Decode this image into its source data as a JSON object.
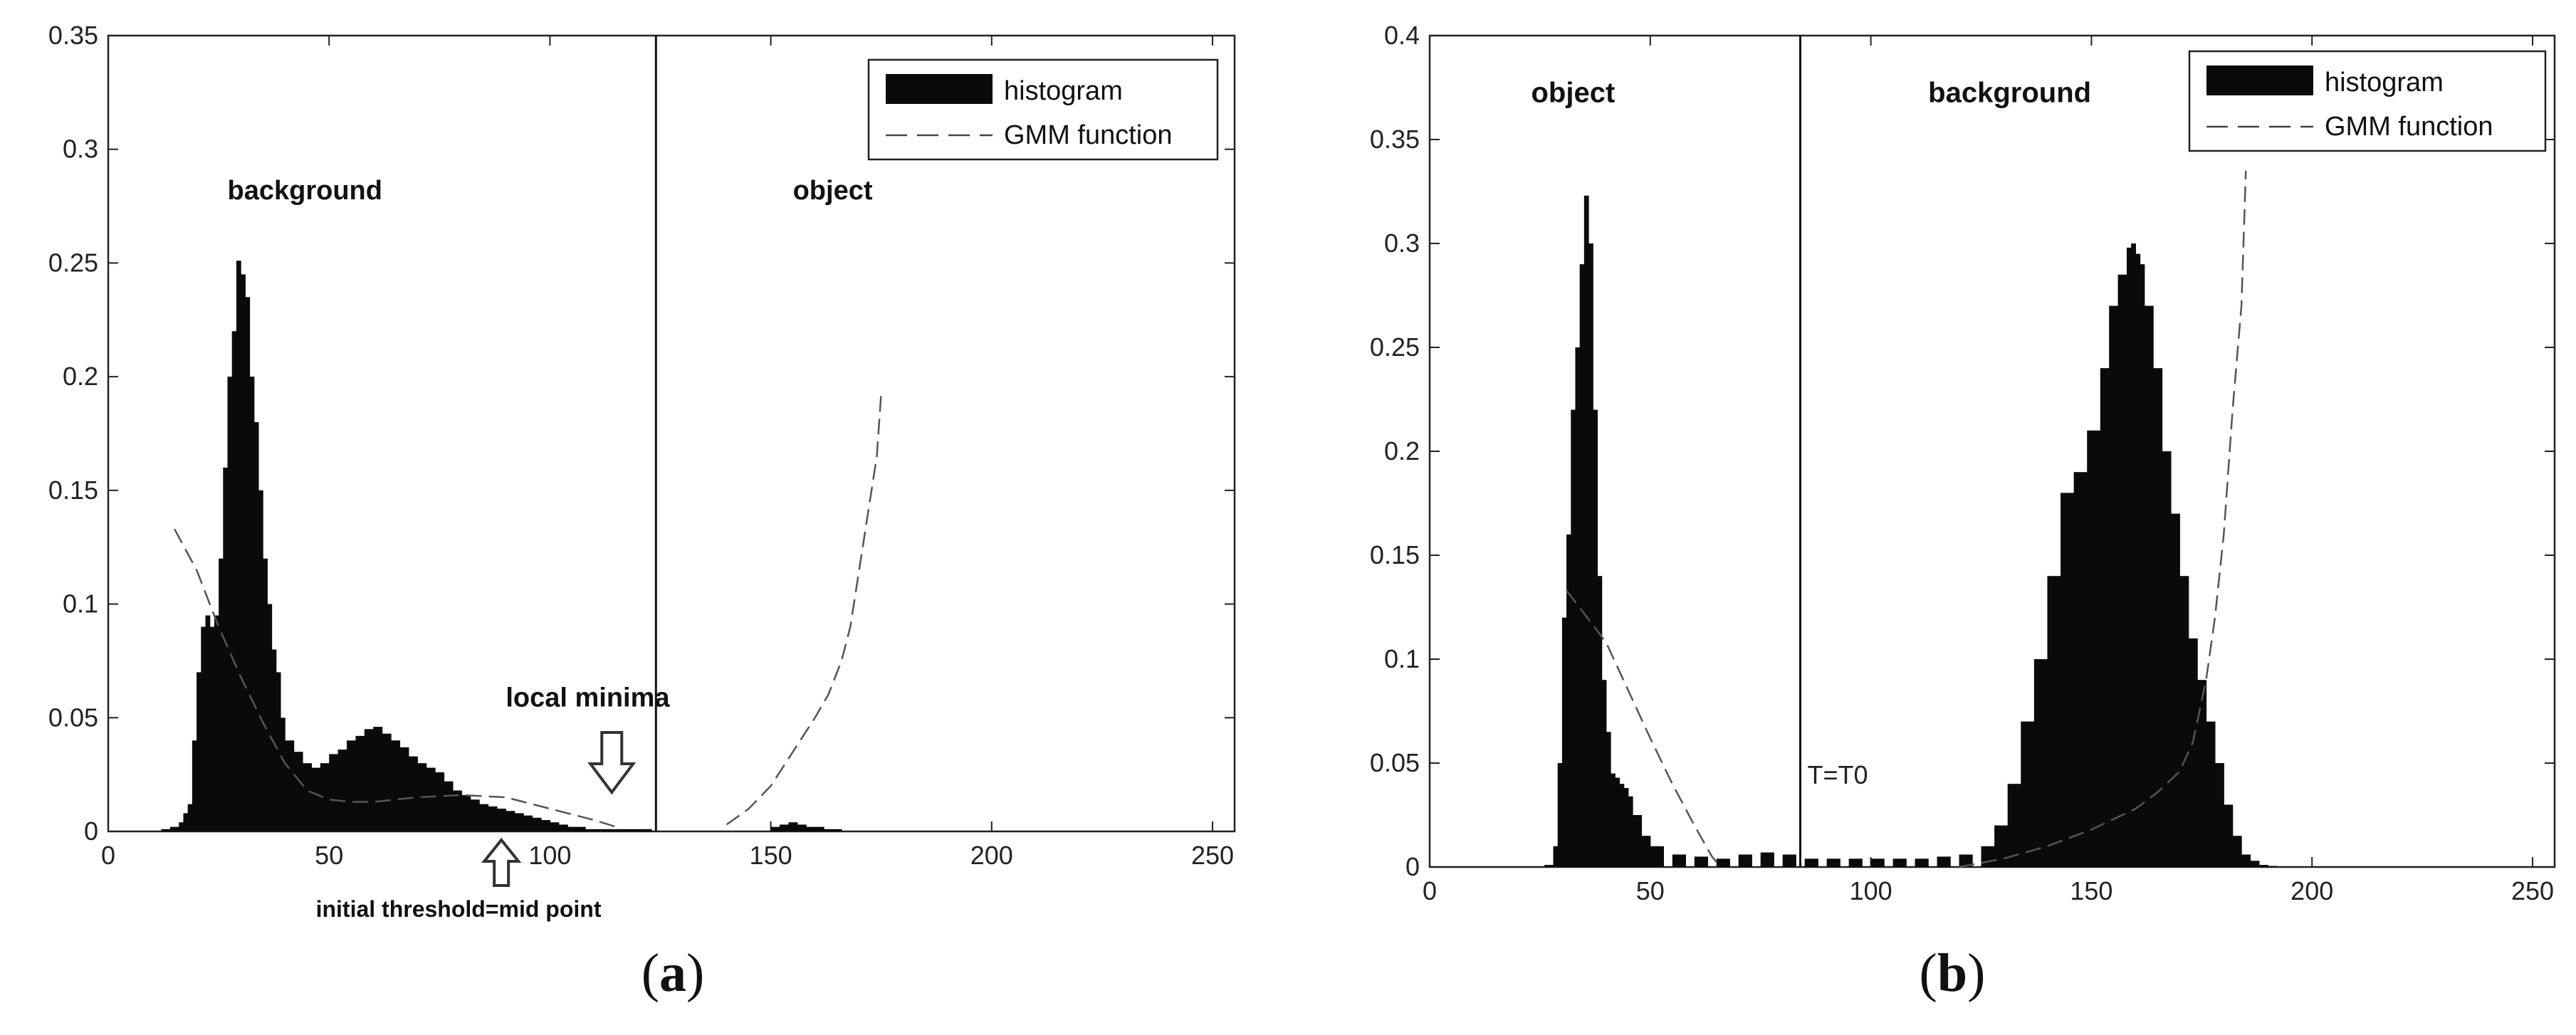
{
  "chart_data": [
    {
      "type": "bar",
      "panel_label": "(a)",
      "panel_letter": "a",
      "xlim": [
        0,
        255
      ],
      "ylim": [
        0,
        0.35
      ],
      "xticks": [
        0,
        50,
        100,
        150,
        200,
        250
      ],
      "yticks": [
        "0",
        "0.05",
        "0.1",
        "0.15",
        "0.2",
        "0.25",
        "0.3",
        "0.35"
      ],
      "legend": {
        "location": "top-right",
        "entries": [
          "histogram",
          "GMM function"
        ]
      },
      "threshold_x": 124,
      "annotations": {
        "background": "background",
        "object": "object",
        "local_minima": "local minima",
        "initial_threshold": "initial threshold=mid point"
      },
      "arrows": {
        "local_minima_x": 114,
        "initial_threshold_x": 89
      },
      "histogram": {
        "x": [
          12,
          14,
          16,
          17,
          18,
          19,
          20,
          21,
          22,
          23,
          24,
          25,
          26,
          27,
          28,
          29,
          30,
          31,
          32,
          33,
          34,
          35,
          36,
          37,
          38,
          39,
          40,
          42,
          44,
          46,
          48,
          50,
          52,
          54,
          56,
          58,
          60,
          62,
          64,
          66,
          68,
          70,
          72,
          74,
          76,
          78,
          80,
          82,
          84,
          86,
          88,
          90,
          92,
          94,
          96,
          98,
          100,
          102,
          104,
          106,
          108,
          110,
          112,
          114,
          116,
          118,
          120,
          150,
          152,
          154,
          156,
          158,
          160,
          162,
          164
        ],
        "y": [
          0.001,
          0.002,
          0.004,
          0.008,
          0.012,
          0.04,
          0.07,
          0.09,
          0.095,
          0.09,
          0.095,
          0.12,
          0.16,
          0.2,
          0.22,
          0.251,
          0.245,
          0.235,
          0.2,
          0.18,
          0.15,
          0.12,
          0.1,
          0.08,
          0.07,
          0.05,
          0.04,
          0.035,
          0.03,
          0.028,
          0.03,
          0.034,
          0.036,
          0.04,
          0.042,
          0.045,
          0.046,
          0.043,
          0.04,
          0.037,
          0.033,
          0.03,
          0.028,
          0.026,
          0.022,
          0.018,
          0.016,
          0.014,
          0.012,
          0.011,
          0.01,
          0.009,
          0.008,
          0.007,
          0.006,
          0.005,
          0.004,
          0.003,
          0.002,
          0.002,
          0.001,
          0.001,
          0.001,
          0.001,
          0.001,
          0.001,
          0.001,
          0.002,
          0.003,
          0.004,
          0.003,
          0.002,
          0.002,
          0.001,
          0.001
        ]
      },
      "gmm_curves": [
        {
          "x": [
            15,
            20,
            25,
            30,
            35,
            40,
            45,
            50,
            55,
            60,
            70,
            80,
            90,
            100,
            110,
            115
          ],
          "y": [
            0.133,
            0.115,
            0.09,
            0.068,
            0.048,
            0.03,
            0.018,
            0.014,
            0.013,
            0.013,
            0.015,
            0.016,
            0.015,
            0.01,
            0.005,
            0.002
          ]
        },
        {
          "x": [
            140,
            145,
            150,
            155,
            160,
            163,
            166,
            168,
            170,
            172,
            174,
            175
          ],
          "y": [
            0.003,
            0.01,
            0.02,
            0.035,
            0.05,
            0.06,
            0.075,
            0.09,
            0.115,
            0.14,
            0.165,
            0.193
          ]
        }
      ]
    },
    {
      "type": "bar",
      "panel_label": "(b)",
      "panel_letter": "b",
      "xlim": [
        0,
        255
      ],
      "ylim": [
        0,
        0.4
      ],
      "xticks": [
        0,
        50,
        100,
        150,
        200,
        250
      ],
      "yticks": [
        "0",
        "0.05",
        "0.1",
        "0.15",
        "0.2",
        "0.25",
        "0.3",
        "0.35",
        "0.4"
      ],
      "legend": {
        "location": "top-right",
        "entries": [
          "histogram",
          "GMM function"
        ]
      },
      "threshold_x": 84,
      "annotations": {
        "object": "object",
        "background": "background",
        "threshold": "T=T0"
      },
      "histogram": {
        "x": [
          26,
          28,
          29,
          30,
          31,
          32,
          33,
          34,
          35,
          36,
          37,
          38,
          39,
          40,
          41,
          42,
          43,
          44,
          45,
          46,
          48,
          50,
          55,
          60,
          65,
          70,
          75,
          80,
          85,
          90,
          95,
          100,
          105,
          110,
          115,
          120,
          125,
          128,
          131,
          134,
          137,
          140,
          143,
          146,
          149,
          152,
          154,
          156,
          158,
          159,
          160,
          161,
          162,
          164,
          166,
          168,
          170,
          172,
          174,
          176,
          178,
          180,
          182,
          184,
          186,
          188,
          190
        ],
        "y": [
          0.001,
          0.01,
          0.05,
          0.12,
          0.16,
          0.22,
          0.25,
          0.29,
          0.323,
          0.3,
          0.22,
          0.14,
          0.09,
          0.065,
          0.045,
          0.043,
          0.04,
          0.038,
          0.034,
          0.025,
          0.015,
          0.01,
          0.006,
          0.005,
          0.004,
          0.006,
          0.007,
          0.006,
          0.004,
          0.004,
          0.004,
          0.004,
          0.004,
          0.004,
          0.005,
          0.006,
          0.01,
          0.02,
          0.04,
          0.07,
          0.1,
          0.14,
          0.18,
          0.19,
          0.21,
          0.24,
          0.27,
          0.285,
          0.298,
          0.3,
          0.295,
          0.29,
          0.27,
          0.24,
          0.2,
          0.17,
          0.14,
          0.11,
          0.09,
          0.07,
          0.05,
          0.03,
          0.015,
          0.006,
          0.003,
          0.001,
          0.0005
        ]
      },
      "gmm_curves": [
        {
          "x": [
            31,
            35,
            40,
            45,
            50,
            55,
            60,
            64,
            66
          ],
          "y": [
            0.133,
            0.122,
            0.108,
            0.085,
            0.062,
            0.04,
            0.02,
            0.005,
            0.0
          ]
        },
        {
          "x": [
            120,
            130,
            140,
            150,
            160,
            165,
            170,
            173,
            176,
            178,
            180,
            182,
            184,
            185
          ],
          "y": [
            0.0,
            0.004,
            0.01,
            0.018,
            0.028,
            0.036,
            0.046,
            0.06,
            0.09,
            0.12,
            0.16,
            0.22,
            0.27,
            0.335
          ]
        }
      ]
    }
  ]
}
